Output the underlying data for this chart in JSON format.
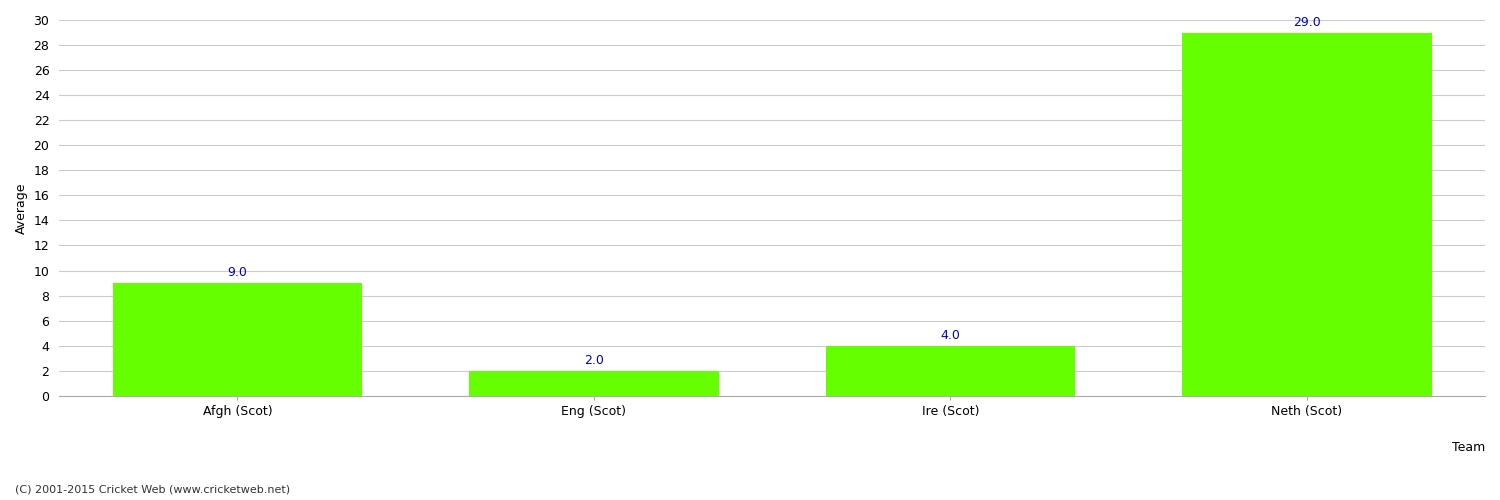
{
  "categories": [
    "Afgh (Scot)",
    "Eng (Scot)",
    "Ire (Scot)",
    "Neth (Scot)"
  ],
  "values": [
    9.0,
    2.0,
    4.0,
    29.0
  ],
  "bar_color": "#66ff00",
  "label_color": "#0000cc",
  "label_fontsize": 9,
  "ylabel": "Average",
  "xlabel": "Team",
  "ylim": [
    0,
    30
  ],
  "yticks": [
    0,
    2,
    4,
    6,
    8,
    10,
    12,
    14,
    16,
    18,
    20,
    22,
    24,
    26,
    28,
    30
  ],
  "background_color": "#ffffff",
  "grid_color": "#cccccc",
  "ylabel_fontsize": 9,
  "xlabel_fontsize": 9,
  "tick_fontsize": 9,
  "footer_text": "(C) 2001-2015 Cricket Web (www.cricketweb.net)",
  "footer_fontsize": 8,
  "footer_color": "#333333",
  "bar_width": 0.7
}
